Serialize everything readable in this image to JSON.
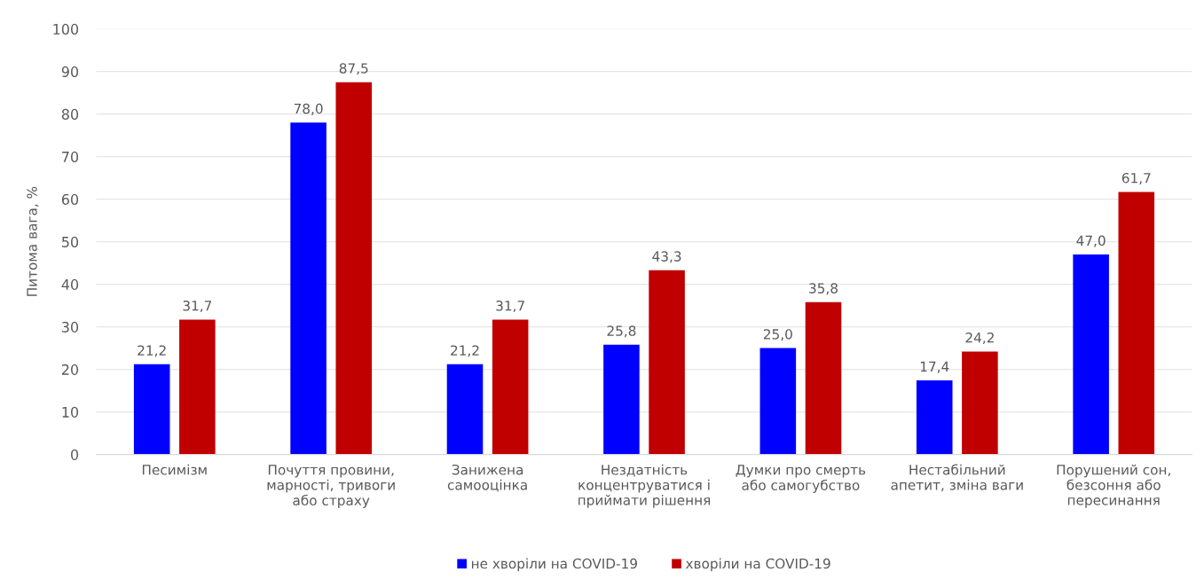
{
  "chart_data": {
    "type": "bar",
    "ylabel": "Питома вага, %",
    "categories": [
      "Песимізм",
      "Почуття провини,\nмарності, тривоги\nабо страху",
      "Занижена\nсамооцінка",
      "Нездатність\nконцентруватися і\nприймати рішення",
      "Думки про смерть\nабо самогубство",
      "Нестабільний\nапетит, зміна ваги",
      "Порушений сон,\nбезсоння або\nпересинання"
    ],
    "series": [
      {
        "name": "не хворіли на COVID-19",
        "color": "#0000ff",
        "values": [
          21.2,
          78.0,
          21.2,
          25.8,
          25.0,
          17.4,
          47.0
        ],
        "value_labels": [
          "21,2",
          "78,0",
          "21,2",
          "25,8",
          "25,0",
          "17,4",
          "47,0"
        ]
      },
      {
        "name": "хворіли на COVID-19",
        "color": "#c00000",
        "values": [
          31.7,
          87.5,
          31.7,
          43.3,
          35.8,
          24.2,
          61.7
        ],
        "value_labels": [
          "31,7",
          "87,5",
          "31,7",
          "43,3",
          "35,8",
          "24,2",
          "61,7"
        ]
      }
    ],
    "ylim": [
      0,
      100
    ],
    "yticks": [
      0,
      10,
      20,
      30,
      40,
      50,
      60,
      70,
      80,
      90,
      100
    ],
    "grid": "y",
    "legend": "bottom"
  }
}
